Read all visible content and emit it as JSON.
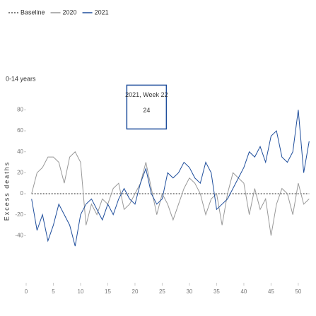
{
  "chart_data": {
    "type": "line",
    "subtitle": "0-14 years",
    "y_label": "Excess deaths",
    "x": [
      1,
      2,
      3,
      4,
      5,
      6,
      7,
      8,
      9,
      10,
      11,
      12,
      13,
      14,
      15,
      16,
      17,
      18,
      19,
      20,
      21,
      22,
      23,
      24,
      25,
      26,
      27,
      28,
      29,
      30,
      31,
      32,
      33,
      34,
      35,
      36,
      37,
      38,
      39,
      40,
      41,
      42,
      43,
      44,
      45,
      46,
      47,
      48,
      49,
      50,
      51,
      52
    ],
    "series": [
      {
        "name": "Baseline",
        "color": "#555555",
        "dashed": true,
        "values": [
          0,
          0,
          0,
          0,
          0,
          0,
          0,
          0,
          0,
          0,
          0,
          0,
          0,
          0,
          0,
          0,
          0,
          0,
          0,
          0,
          0,
          0,
          0,
          0,
          0,
          0,
          0,
          0,
          0,
          0,
          0,
          0,
          0,
          0,
          0,
          0,
          0,
          0,
          0,
          0,
          0,
          0,
          0,
          0,
          0,
          0,
          0,
          0,
          0,
          0,
          0,
          0
        ]
      },
      {
        "name": "2020",
        "color": "#999999",
        "dashed": false,
        "values": [
          0,
          20,
          25,
          35,
          35,
          30,
          10,
          35,
          40,
          30,
          -30,
          -10,
          -20,
          -5,
          -10,
          5,
          10,
          -15,
          -10,
          0,
          10,
          30,
          5,
          -20,
          0,
          -10,
          -25,
          -10,
          5,
          15,
          10,
          0,
          -20,
          -5,
          0,
          -30,
          0,
          20,
          15,
          10,
          -20,
          5,
          -15,
          -5,
          -40,
          -10,
          5,
          0,
          -20,
          10,
          -10,
          -5
        ]
      },
      {
        "name": "2021",
        "color": "#1f4e9c",
        "dashed": false,
        "values": [
          -5,
          -35,
          -20,
          -45,
          -30,
          -10,
          -20,
          -30,
          -50,
          -20,
          -10,
          -5,
          -15,
          -25,
          -10,
          -20,
          -5,
          5,
          -5,
          -10,
          10,
          24,
          0,
          -10,
          -5,
          20,
          15,
          20,
          30,
          25,
          15,
          10,
          30,
          20,
          -15,
          -10,
          -5,
          5,
          15,
          25,
          40,
          35,
          45,
          30,
          55,
          60,
          35,
          30,
          40,
          80,
          20,
          50
        ]
      }
    ],
    "xlim": [
      0,
      53
    ],
    "xticks": [
      0,
      5,
      10,
      15,
      20,
      25,
      30,
      35,
      40,
      45,
      50
    ],
    "ylim": [
      -85,
      85
    ],
    "yticks": [
      -40,
      -20,
      0,
      20,
      40,
      60,
      80
    ],
    "tooltip": {
      "title": "2021, Week 22",
      "value": 24,
      "series": 2,
      "index": 21
    }
  }
}
